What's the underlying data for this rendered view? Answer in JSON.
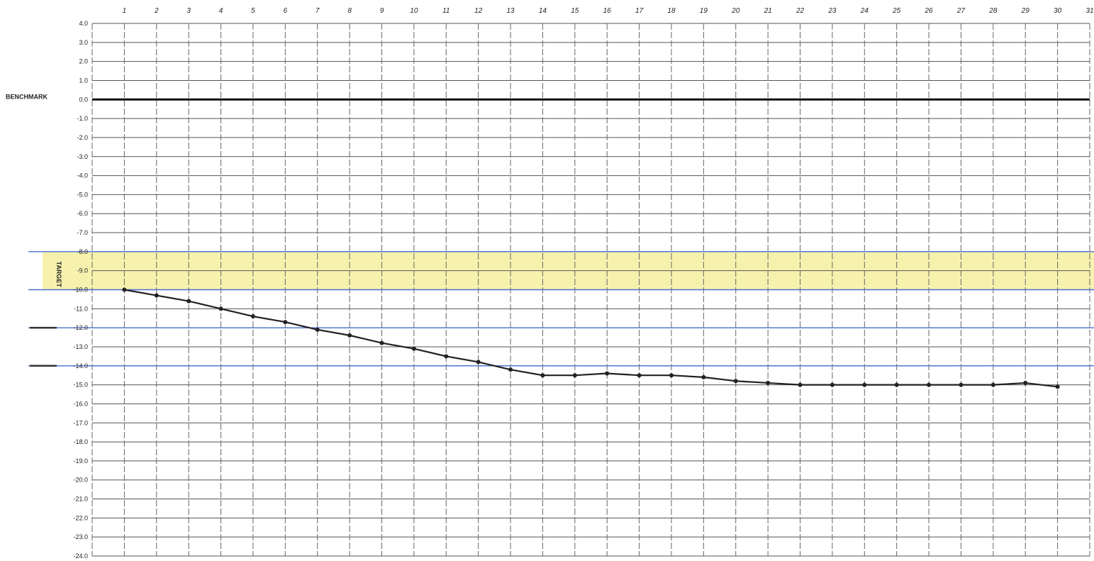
{
  "chart_data": {
    "type": "line",
    "x_ticks": [
      "1",
      "2",
      "3",
      "4",
      "5",
      "6",
      "7",
      "8",
      "9",
      "10",
      "11",
      "12",
      "13",
      "14",
      "15",
      "16",
      "17",
      "18",
      "19",
      "20",
      "21",
      "22",
      "23",
      "24",
      "25",
      "26",
      "27",
      "28",
      "29",
      "30",
      "31"
    ],
    "y_ticks": [
      "4.0",
      "3.0",
      "2.0",
      "1.0",
      "0.0",
      "-1.0",
      "-2.0",
      "-3.0",
      "-4.0",
      "-5.0",
      "-6.0",
      "-7.0",
      "-8.0",
      "-9.0",
      "-10.0",
      "-11.0",
      "-12.0",
      "-13.0",
      "-14.0",
      "-15.0",
      "-16.0",
      "-17.0",
      "-18.0",
      "-19.0",
      "-20.0",
      "-21.0",
      "-22.0",
      "-23.0",
      "-24.0"
    ],
    "xlim": [
      0,
      31
    ],
    "ylim": [
      -24,
      4
    ],
    "grid": true,
    "benchmark": {
      "label": "BENCHMARK",
      "value": 0.0
    },
    "target": {
      "label": "TARGET",
      "range": [
        -10.0,
        -8.0
      ],
      "color": "#f4f0a0"
    },
    "reference_lines": [
      -8.0,
      -10.0,
      -12.0,
      -14.0
    ],
    "reference_color": "#4a6fd0",
    "series": [
      {
        "color": "#222222",
        "x": [
          1,
          2,
          3,
          4,
          5,
          6,
          7,
          8,
          9,
          10,
          11,
          12,
          13,
          14,
          15,
          16,
          17,
          18,
          19,
          20,
          21,
          22,
          23,
          24,
          25,
          26,
          27,
          28,
          29,
          30
        ],
        "values": [
          -10.0,
          -10.3,
          -10.6,
          -11.0,
          -11.4,
          -11.7,
          -12.1,
          -12.4,
          -12.8,
          -13.1,
          -13.5,
          -13.8,
          -14.2,
          -14.5,
          -14.5,
          -14.4,
          -14.5,
          -14.5,
          -14.6,
          -14.8,
          -14.9,
          -15.0,
          -15.0,
          -15.0,
          -15.0,
          -15.0,
          -15.0,
          -15.0,
          -14.9,
          -15.1
        ]
      }
    ]
  }
}
